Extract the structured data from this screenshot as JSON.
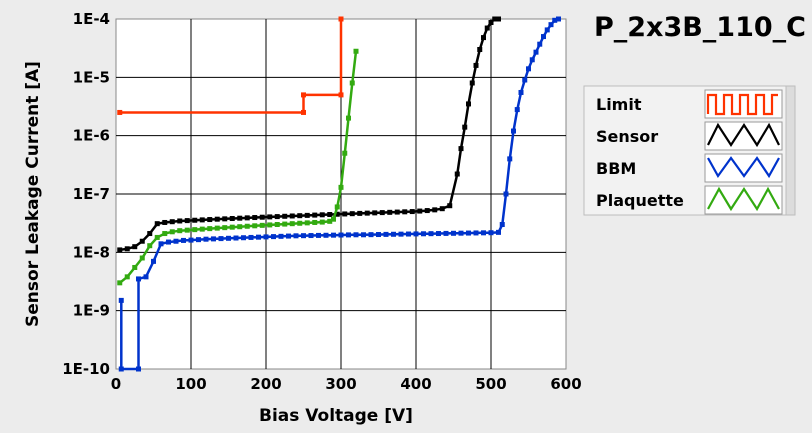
{
  "chart_data": {
    "type": "line",
    "title": "P_2x3B_110_C",
    "xlabel": "Bias Voltage [V]",
    "ylabel": "Sensor Leakage Current [A]",
    "xscale": "linear",
    "yscale": "log",
    "xlim": [
      0,
      600
    ],
    "ylim": [
      1e-10,
      0.0001
    ],
    "x_ticks": [
      0,
      100,
      200,
      300,
      400,
      500,
      600
    ],
    "x_tick_labels": [
      "0",
      "100",
      "200",
      "300",
      "400",
      "500",
      "600"
    ],
    "y_ticks": [
      1e-10,
      1e-09,
      1e-08,
      1e-07,
      1e-06,
      1e-05,
      0.0001
    ],
    "y_tick_labels": [
      "1E-10",
      "1E-9",
      "1E-8",
      "1E-7",
      "1E-6",
      "1E-5",
      "1E-4"
    ],
    "grid": true,
    "plot_background": "#ffffff",
    "legend_position": "right",
    "series": [
      {
        "name": "Limit",
        "color": "#ff3300",
        "step": true,
        "points": [
          [
            5,
            2.5e-06
          ],
          [
            250,
            2.5e-06
          ],
          [
            250,
            5e-06
          ],
          [
            300,
            5e-06
          ],
          [
            300,
            0.0001
          ]
        ]
      },
      {
        "name": "Sensor",
        "color": "#000000",
        "points": [
          [
            5,
            1.1e-08
          ],
          [
            15,
            1.15e-08
          ],
          [
            25,
            1.25e-08
          ],
          [
            35,
            1.55e-08
          ],
          [
            45,
            2.1e-08
          ],
          [
            55,
            3.1e-08
          ],
          [
            65,
            3.25e-08
          ],
          [
            75,
            3.35e-08
          ],
          [
            85,
            3.45e-08
          ],
          [
            95,
            3.5e-08
          ],
          [
            105,
            3.55e-08
          ],
          [
            115,
            3.6e-08
          ],
          [
            125,
            3.65e-08
          ],
          [
            135,
            3.7e-08
          ],
          [
            145,
            3.75e-08
          ],
          [
            155,
            3.8e-08
          ],
          [
            165,
            3.85e-08
          ],
          [
            175,
            3.9e-08
          ],
          [
            185,
            3.95e-08
          ],
          [
            195,
            4e-08
          ],
          [
            205,
            4.05e-08
          ],
          [
            215,
            4.1e-08
          ],
          [
            225,
            4.15e-08
          ],
          [
            235,
            4.2e-08
          ],
          [
            245,
            4.25e-08
          ],
          [
            255,
            4.3e-08
          ],
          [
            265,
            4.35e-08
          ],
          [
            275,
            4.4e-08
          ],
          [
            285,
            4.45e-08
          ],
          [
            295,
            4.5e-08
          ],
          [
            305,
            4.55e-08
          ],
          [
            315,
            4.6e-08
          ],
          [
            325,
            4.65e-08
          ],
          [
            335,
            4.7e-08
          ],
          [
            345,
            4.75e-08
          ],
          [
            355,
            4.8e-08
          ],
          [
            365,
            4.85e-08
          ],
          [
            375,
            4.9e-08
          ],
          [
            385,
            4.95e-08
          ],
          [
            395,
            5e-08
          ],
          [
            405,
            5.1e-08
          ],
          [
            415,
            5.2e-08
          ],
          [
            425,
            5.35e-08
          ],
          [
            435,
            5.6e-08
          ],
          [
            445,
            6.3e-08
          ],
          [
            455,
            2.2e-07
          ],
          [
            460,
            6e-07
          ],
          [
            465,
            1.4e-06
          ],
          [
            470,
            3.5e-06
          ],
          [
            475,
            8e-06
          ],
          [
            480,
            1.6e-05
          ],
          [
            485,
            3e-05
          ],
          [
            490,
            4.8e-05
          ],
          [
            495,
            7e-05
          ],
          [
            500,
            8.7e-05
          ],
          [
            505,
            0.0001
          ],
          [
            510,
            0.0001
          ]
        ]
      },
      {
        "name": "BBM",
        "color": "#0033cc",
        "points": [
          [
            7,
            1.5e-09
          ],
          [
            7,
            1e-10
          ],
          [
            30,
            1e-10
          ],
          [
            30,
            3.5e-09
          ],
          [
            40,
            3.8e-09
          ],
          [
            50,
            7e-09
          ],
          [
            60,
            1.4e-08
          ],
          [
            70,
            1.5e-08
          ],
          [
            80,
            1.55e-08
          ],
          [
            90,
            1.6e-08
          ],
          [
            100,
            1.62e-08
          ],
          [
            110,
            1.65e-08
          ],
          [
            120,
            1.68e-08
          ],
          [
            130,
            1.7e-08
          ],
          [
            140,
            1.72e-08
          ],
          [
            150,
            1.74e-08
          ],
          [
            160,
            1.76e-08
          ],
          [
            170,
            1.78e-08
          ],
          [
            180,
            1.8e-08
          ],
          [
            190,
            1.82e-08
          ],
          [
            200,
            1.84e-08
          ],
          [
            210,
            1.86e-08
          ],
          [
            220,
            1.88e-08
          ],
          [
            230,
            1.9e-08
          ],
          [
            240,
            1.92e-08
          ],
          [
            250,
            1.93e-08
          ],
          [
            260,
            1.94e-08
          ],
          [
            270,
            1.95e-08
          ],
          [
            280,
            1.96e-08
          ],
          [
            290,
            1.97e-08
          ],
          [
            300,
            1.98e-08
          ],
          [
            310,
            1.99e-08
          ],
          [
            320,
            2e-08
          ],
          [
            330,
            2e-08
          ],
          [
            340,
            2.01e-08
          ],
          [
            350,
            2.02e-08
          ],
          [
            360,
            2.03e-08
          ],
          [
            370,
            2.04e-08
          ],
          [
            380,
            2.05e-08
          ],
          [
            390,
            2.06e-08
          ],
          [
            400,
            2.07e-08
          ],
          [
            410,
            2.08e-08
          ],
          [
            420,
            2.09e-08
          ],
          [
            430,
            2.1e-08
          ],
          [
            440,
            2.11e-08
          ],
          [
            450,
            2.12e-08
          ],
          [
            460,
            2.13e-08
          ],
          [
            470,
            2.14e-08
          ],
          [
            480,
            2.15e-08
          ],
          [
            490,
            2.16e-08
          ],
          [
            500,
            2.17e-08
          ],
          [
            510,
            2.2e-08
          ],
          [
            515,
            3e-08
          ],
          [
            520,
            1e-07
          ],
          [
            525,
            4e-07
          ],
          [
            530,
            1.2e-06
          ],
          [
            535,
            2.8e-06
          ],
          [
            540,
            5.5e-06
          ],
          [
            545,
            9e-06
          ],
          [
            550,
            1.4e-05
          ],
          [
            555,
            2e-05
          ],
          [
            560,
            2.7e-05
          ],
          [
            565,
            3.7e-05
          ],
          [
            570,
            5e-05
          ],
          [
            575,
            6.5e-05
          ],
          [
            580,
            8e-05
          ],
          [
            585,
            9.5e-05
          ],
          [
            590,
            0.0001
          ]
        ]
      },
      {
        "name": "Plaquette",
        "color": "#33aa11",
        "points": [
          [
            5,
            3e-09
          ],
          [
            15,
            3.8e-09
          ],
          [
            25,
            5.5e-09
          ],
          [
            35,
            8e-09
          ],
          [
            45,
            1.3e-08
          ],
          [
            55,
            1.8e-08
          ],
          [
            65,
            2.1e-08
          ],
          [
            75,
            2.25e-08
          ],
          [
            85,
            2.35e-08
          ],
          [
            95,
            2.4e-08
          ],
          [
            105,
            2.45e-08
          ],
          [
            115,
            2.5e-08
          ],
          [
            125,
            2.55e-08
          ],
          [
            135,
            2.6e-08
          ],
          [
            145,
            2.65e-08
          ],
          [
            155,
            2.7e-08
          ],
          [
            165,
            2.75e-08
          ],
          [
            175,
            2.8e-08
          ],
          [
            185,
            2.85e-08
          ],
          [
            195,
            2.9e-08
          ],
          [
            205,
            2.95e-08
          ],
          [
            215,
            3e-08
          ],
          [
            225,
            3.05e-08
          ],
          [
            235,
            3.1e-08
          ],
          [
            245,
            3.15e-08
          ],
          [
            255,
            3.2e-08
          ],
          [
            265,
            3.25e-08
          ],
          [
            275,
            3.3e-08
          ],
          [
            285,
            3.4e-08
          ],
          [
            290,
            3.7e-08
          ],
          [
            295,
            6e-08
          ],
          [
            300,
            1.3e-07
          ],
          [
            305,
            5e-07
          ],
          [
            310,
            2e-06
          ],
          [
            315,
            8e-06
          ],
          [
            320,
            2.8e-05
          ]
        ]
      }
    ]
  }
}
